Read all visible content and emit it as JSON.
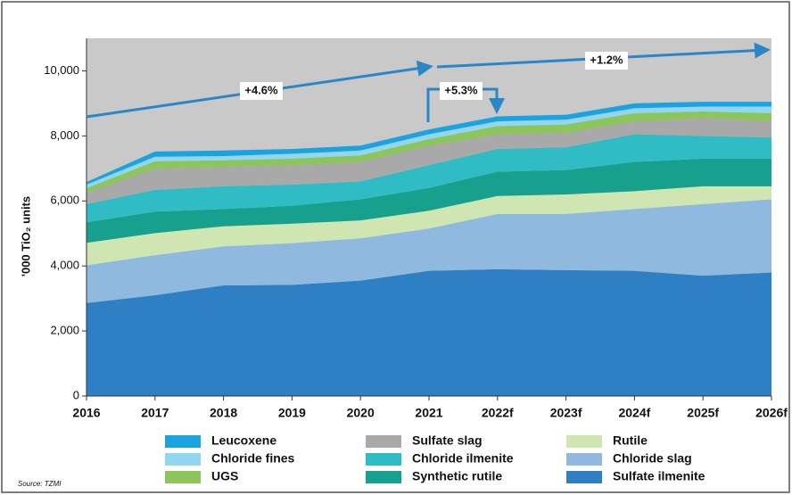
{
  "chart_data": {
    "type": "stacked_area",
    "y_label": "'000 TiO₂ units",
    "source": "Source: TZMI",
    "categories": [
      "2016",
      "2017",
      "2018",
      "2019",
      "2020",
      "2021",
      "2022f",
      "2023f",
      "2024f",
      "2025f",
      "2026f"
    ],
    "series": [
      {
        "name": "Sulfate ilmenite",
        "color": "#2e7fc4",
        "values": [
          2860,
          3100,
          3400,
          3420,
          3550,
          3850,
          3900,
          3870,
          3850,
          3700,
          3800
        ]
      },
      {
        "name": "Chloride slag",
        "color": "#8fb9df",
        "values": [
          1160,
          1230,
          1200,
          1280,
          1300,
          1300,
          1700,
          1730,
          1900,
          2200,
          2250
        ]
      },
      {
        "name": "Rutile",
        "color": "#cfe6b2",
        "values": [
          690,
          680,
          620,
          600,
          550,
          550,
          550,
          600,
          550,
          550,
          400
        ]
      },
      {
        "name": "Synthetic rutile",
        "color": "#17a08e",
        "values": [
          630,
          660,
          530,
          550,
          650,
          700,
          750,
          750,
          900,
          850,
          850
        ]
      },
      {
        "name": "Chloride ilmenite",
        "color": "#2fbcc4",
        "values": [
          560,
          670,
          700,
          650,
          550,
          700,
          700,
          700,
          850,
          700,
          650
        ]
      },
      {
        "name": "Sulfate slag",
        "color": "#a9a9a9",
        "values": [
          350,
          660,
          600,
          600,
          600,
          600,
          450,
          450,
          400,
          550,
          500
        ]
      },
      {
        "name": "UGS",
        "color": "#8cc65a",
        "values": [
          140,
          220,
          200,
          200,
          200,
          200,
          250,
          250,
          250,
          200,
          250
        ]
      },
      {
        "name": "Chloride fines",
        "color": "#93d6f2",
        "values": [
          110,
          140,
          130,
          150,
          150,
          150,
          150,
          150,
          150,
          150,
          200
        ]
      },
      {
        "name": "Leucoxene",
        "color": "#1aa3e0",
        "values": [
          80,
          160,
          170,
          150,
          150,
          150,
          150,
          150,
          150,
          150,
          150
        ]
      }
    ],
    "ylim": [
      0,
      11000
    ],
    "yticks": [
      0,
      {
        "value": 2000,
        "label": "2,000"
      },
      {
        "value": 4000,
        "label": "4,000"
      },
      {
        "value": 6000,
        "label": "6,000"
      },
      {
        "value": 8000,
        "label": "8,000"
      },
      {
        "value": 10000,
        "label": "10,000"
      }
    ],
    "annotations": [
      "+4.6%",
      "+5.3%",
      "+1.2%"
    ],
    "background": "#c9c9c9"
  }
}
